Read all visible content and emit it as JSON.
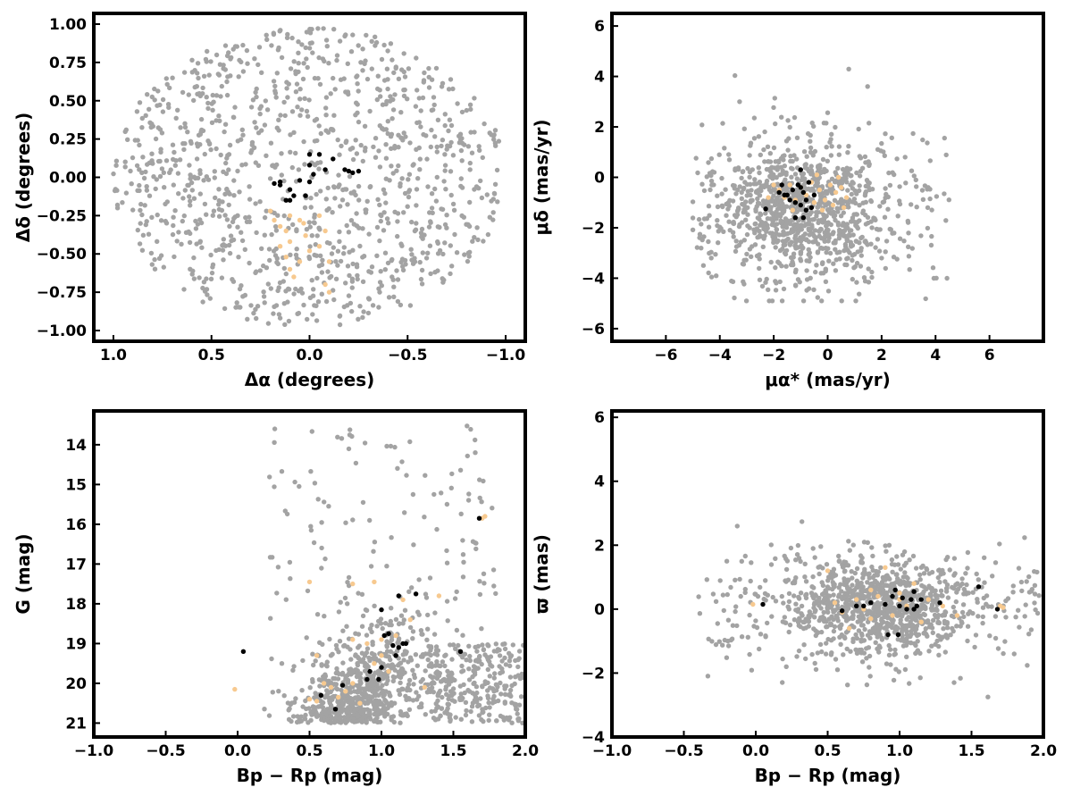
{
  "colors": {
    "field": "#a3a3a3",
    "members": "#000000",
    "candidates": "#f7c98f"
  },
  "chart_data": [
    {
      "type": "scatter",
      "id": "sky",
      "xlabel": "Δα (degrees)",
      "ylabel": "Δδ (degrees)",
      "xlim": [
        1.1,
        -1.1
      ],
      "ylim": [
        -1.07,
        1.07
      ],
      "xticks": [
        1.0,
        0.5,
        0.0,
        -0.5,
        -1.0
      ],
      "xtick_labels": [
        "1.0",
        "0.5",
        "0.0",
        "−0.5",
        "−1.0"
      ],
      "yticks": [
        1.0,
        0.75,
        0.5,
        0.25,
        0.0,
        -0.25,
        -0.5,
        -0.75,
        -1.0
      ],
      "ytick_labels": [
        "1.00",
        "0.75",
        "0.50",
        "0.25",
        "0.00",
        "−0.25",
        "−0.50",
        "−0.75",
        "−1.00"
      ],
      "series": [
        {
          "role": "field",
          "color": "#a3a3a3",
          "count": 1100,
          "distribution": {
            "shape": "disk",
            "cx": 0.0,
            "cy": 0.0,
            "r": 1.0
          }
        },
        {
          "role": "candidates",
          "color": "#f7c98f",
          "points": [
            [
              0.2,
              -0.22
            ],
            [
              0.18,
              -0.28
            ],
            [
              0.15,
              -0.32
            ],
            [
              0.12,
              -0.35
            ],
            [
              0.05,
              -0.28
            ],
            [
              -0.05,
              -0.25
            ],
            [
              -0.08,
              -0.35
            ],
            [
              0.02,
              -0.38
            ],
            [
              0.1,
              -0.42
            ],
            [
              0.15,
              -0.45
            ],
            [
              0.12,
              -0.52
            ],
            [
              0.05,
              -0.55
            ],
            [
              0.0,
              -0.48
            ],
            [
              -0.05,
              -0.45
            ],
            [
              -0.1,
              -0.55
            ],
            [
              -0.08,
              -0.7
            ],
            [
              -0.1,
              -0.75
            ],
            [
              0.1,
              -0.6
            ],
            [
              0.08,
              -0.65
            ],
            [
              0.1,
              -0.25
            ],
            [
              0.03,
              -0.3
            ]
          ]
        },
        {
          "role": "members",
          "color": "#000000",
          "points": [
            [
              -0.02,
              0.02
            ],
            [
              -0.05,
              0.15
            ],
            [
              0.0,
              0.15
            ],
            [
              -0.12,
              0.12
            ],
            [
              0.0,
              0.08
            ],
            [
              0.05,
              -0.02
            ],
            [
              0.15,
              -0.03
            ],
            [
              0.15,
              -0.05
            ],
            [
              0.1,
              -0.08
            ],
            [
              0.08,
              -0.12
            ],
            [
              0.1,
              -0.15
            ],
            [
              0.12,
              -0.15
            ],
            [
              0.02,
              -0.12
            ],
            [
              0.0,
              -0.03
            ],
            [
              -0.08,
              0.05
            ],
            [
              -0.18,
              0.05
            ],
            [
              -0.2,
              0.04
            ],
            [
              -0.22,
              0.03
            ],
            [
              -0.25,
              0.04
            ],
            [
              0.18,
              -0.04
            ]
          ]
        }
      ]
    },
    {
      "type": "scatter",
      "id": "proper-motion",
      "xlabel": "μα* (mas/yr)",
      "ylabel": "μδ (mas/yr)",
      "xlim": [
        -8,
        8
      ],
      "ylim": [
        -6.5,
        6.5
      ],
      "xticks": [
        -6,
        -4,
        -2,
        0,
        2,
        4,
        6
      ],
      "xtick_labels": [
        "−6",
        "−4",
        "−2",
        "0",
        "2",
        "4",
        "6"
      ],
      "yticks": [
        6,
        4,
        2,
        0,
        -2,
        -4,
        -6
      ],
      "ytick_labels": [
        "6",
        "4",
        "2",
        "0",
        "−2",
        "−4",
        "−6"
      ],
      "series": [
        {
          "role": "field",
          "color": "#a3a3a3",
          "count": 1100,
          "distribution": {
            "shape": "cloud",
            "cx": -1.0,
            "cy": -1.2,
            "sx": 1.5,
            "sy": 1.4,
            "xmin": -5.0,
            "xmax": 4.5,
            "ymin": -4.9,
            "ymax": 4.6
          }
        },
        {
          "role": "candidates",
          "color": "#f7c98f",
          "points": [
            [
              -1.8,
              -0.5
            ],
            [
              -1.6,
              -0.8
            ],
            [
              -1.4,
              -0.3
            ],
            [
              -1.2,
              -0.9
            ],
            [
              -1.0,
              -0.4
            ],
            [
              -0.8,
              -0.7
            ],
            [
              -0.6,
              -0.2
            ],
            [
              -0.5,
              -1.0
            ],
            [
              -0.3,
              -0.5
            ],
            [
              -0.1,
              -0.9
            ],
            [
              0.1,
              -0.3
            ],
            [
              0.3,
              -0.6
            ],
            [
              0.5,
              -0.4
            ],
            [
              0.2,
              -1.1
            ],
            [
              -0.4,
              0.1
            ],
            [
              0.6,
              -1.2
            ],
            [
              -2.0,
              -0.3
            ],
            [
              -1.3,
              -1.3
            ],
            [
              0.4,
              0.0
            ],
            [
              -0.2,
              -1.3
            ],
            [
              0.7,
              -0.8
            ],
            [
              -2.2,
              -0.8
            ]
          ]
        },
        {
          "role": "members",
          "color": "#000000",
          "points": [
            [
              -1.0,
              0.3
            ],
            [
              -1.7,
              -0.3
            ],
            [
              -1.8,
              -0.6
            ],
            [
              -1.5,
              -0.7
            ],
            [
              -1.3,
              -0.5
            ],
            [
              -1.2,
              -1.0
            ],
            [
              -1.0,
              -1.1
            ],
            [
              -0.8,
              -0.9
            ],
            [
              -0.7,
              -0.2
            ],
            [
              -0.5,
              -0.7
            ],
            [
              -0.9,
              -0.6
            ],
            [
              -1.1,
              -0.3
            ],
            [
              -1.4,
              -0.9
            ],
            [
              -0.6,
              -1.2
            ],
            [
              -1.2,
              -1.6
            ],
            [
              -0.9,
              -1.6
            ],
            [
              -2.3,
              -1.25
            ],
            [
              -1.6,
              -0.7
            ],
            [
              -1.0,
              -0.4
            ],
            [
              -0.8,
              -1.3
            ]
          ]
        }
      ]
    },
    {
      "type": "scatter",
      "id": "cmd",
      "xlabel": "Bp − Rp (mag)",
      "ylabel": "G (mag)",
      "xlim": [
        -1.0,
        2.0
      ],
      "ylim": [
        21.35,
        13.15
      ],
      "xticks": [
        -1.0,
        -0.5,
        0.0,
        0.5,
        1.0,
        1.5,
        2.0
      ],
      "xtick_labels": [
        "−1.0",
        "−0.5",
        "0.0",
        "0.5",
        "1.0",
        "1.5",
        "2.0"
      ],
      "yticks": [
        21,
        20,
        19,
        18,
        17,
        16,
        15,
        14
      ],
      "ytick_labels": [
        "21",
        "20",
        "19",
        "18",
        "17",
        "16",
        "15",
        "14"
      ],
      "series": [
        {
          "role": "field",
          "color": "#a3a3a3",
          "count": 1100,
          "distribution": {
            "shape": "cmd",
            "xmin": -0.4,
            "xmax": 2.0,
            "ymin": 13.5,
            "ymax": 21.0
          }
        },
        {
          "role": "candidates",
          "color": "#f7c98f",
          "points": [
            [
              -0.02,
              20.15
            ],
            [
              0.5,
              17.45
            ],
            [
              0.5,
              20.4
            ],
            [
              0.55,
              20.45
            ],
            [
              0.6,
              20.0
            ],
            [
              0.65,
              20.1
            ],
            [
              0.7,
              20.35
            ],
            [
              0.75,
              20.2
            ],
            [
              0.8,
              20.0
            ],
            [
              0.85,
              20.5
            ],
            [
              0.9,
              19.0
            ],
            [
              0.95,
              19.5
            ],
            [
              1.0,
              18.9
            ],
            [
              1.0,
              19.3
            ],
            [
              1.05,
              19.7
            ],
            [
              1.1,
              18.8
            ],
            [
              1.15,
              17.9
            ],
            [
              1.2,
              18.4
            ],
            [
              0.8,
              17.5
            ],
            [
              0.95,
              17.45
            ],
            [
              1.4,
              17.8
            ],
            [
              1.7,
              15.85
            ],
            [
              1.72,
              15.8
            ],
            [
              1.3,
              20.1
            ],
            [
              0.55,
              19.3
            ],
            [
              0.8,
              18.9
            ]
          ]
        },
        {
          "role": "members",
          "color": "#000000",
          "points": [
            [
              0.04,
              19.2
            ],
            [
              0.58,
              20.3
            ],
            [
              0.68,
              20.65
            ],
            [
              0.73,
              20.05
            ],
            [
              0.9,
              19.9
            ],
            [
              0.98,
              19.9
            ],
            [
              1.0,
              18.15
            ],
            [
              1.02,
              18.8
            ],
            [
              1.05,
              18.75
            ],
            [
              1.08,
              19.05
            ],
            [
              1.1,
              19.3
            ],
            [
              1.12,
              19.1
            ],
            [
              1.15,
              19.0
            ],
            [
              1.17,
              19.0
            ],
            [
              1.12,
              17.8
            ],
            [
              1.24,
              17.75
            ],
            [
              1.55,
              19.2
            ],
            [
              1.68,
              15.85
            ],
            [
              0.92,
              19.7
            ],
            [
              1.0,
              19.6
            ]
          ]
        }
      ]
    },
    {
      "type": "scatter",
      "id": "parallax",
      "xlabel": "Bp − Rp (mag)",
      "ylabel": "ϖ (mas)",
      "xlim": [
        -1.0,
        2.0
      ],
      "ylim": [
        -4.0,
        6.2
      ],
      "xticks": [
        -1.0,
        -0.5,
        0.0,
        0.5,
        1.0,
        1.5,
        2.0
      ],
      "xtick_labels": [
        "−1.0",
        "−0.5",
        "0.0",
        "0.5",
        "1.0",
        "1.5",
        "2.0"
      ],
      "yticks": [
        6,
        4,
        2,
        0,
        -2,
        -4
      ],
      "ytick_labels": [
        "6",
        "4",
        "2",
        "0",
        "−2",
        "−4"
      ],
      "series": [
        {
          "role": "field",
          "color": "#a3a3a3",
          "count": 1100,
          "distribution": {
            "shape": "cloud",
            "cx": 0.85,
            "cy": 0.1,
            "sx": 0.32,
            "sy": 0.75,
            "xmin": -0.4,
            "xmax": 2.0,
            "ymin": -3.6,
            "ymax": 5.8
          }
        },
        {
          "role": "candidates",
          "color": "#f7c98f",
          "points": [
            [
              -0.02,
              0.15
            ],
            [
              0.5,
              1.2
            ],
            [
              0.55,
              0.2
            ],
            [
              0.6,
              -0.1
            ],
            [
              0.65,
              -0.6
            ],
            [
              0.7,
              0.3
            ],
            [
              0.75,
              0.0
            ],
            [
              0.8,
              -0.3
            ],
            [
              0.85,
              0.4
            ],
            [
              0.9,
              1.3
            ],
            [
              0.95,
              -0.2
            ],
            [
              1.0,
              0.5
            ],
            [
              1.05,
              0.1
            ],
            [
              1.1,
              0.8
            ],
            [
              1.15,
              -0.4
            ],
            [
              1.2,
              0.3
            ],
            [
              1.3,
              0.1
            ],
            [
              1.4,
              -0.2
            ],
            [
              0.8,
              0.6
            ],
            [
              1.7,
              0.1
            ],
            [
              1.72,
              0.05
            ],
            [
              1.0,
              0.3
            ]
          ]
        },
        {
          "role": "members",
          "color": "#000000",
          "points": [
            [
              0.05,
              0.15
            ],
            [
              0.6,
              -0.05
            ],
            [
              0.7,
              0.1
            ],
            [
              0.8,
              0.2
            ],
            [
              0.9,
              0.15
            ],
            [
              0.92,
              -0.8
            ],
            [
              0.95,
              0.4
            ],
            [
              0.97,
              0.6
            ],
            [
              0.99,
              -0.8
            ],
            [
              1.0,
              0.1
            ],
            [
              1.02,
              0.35
            ],
            [
              1.05,
              0.0
            ],
            [
              1.08,
              0.3
            ],
            [
              1.1,
              0.55
            ],
            [
              1.12,
              0.1
            ],
            [
              1.15,
              0.3
            ],
            [
              1.28,
              0.2
            ],
            [
              1.55,
              0.7
            ],
            [
              1.68,
              0.0
            ],
            [
              1.1,
              0.0
            ],
            [
              0.75,
              0.1
            ]
          ]
        }
      ]
    }
  ]
}
